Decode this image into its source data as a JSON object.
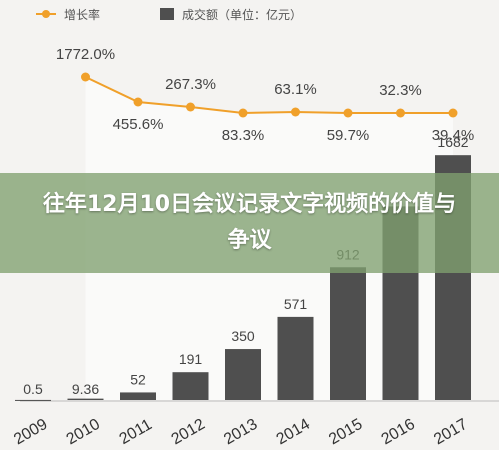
{
  "legend": {
    "growth_label": "增长率",
    "volume_label": "成交额（单位：亿元）"
  },
  "banner": {
    "title": "往年12月10日会议记录文字视频的价值与争议"
  },
  "colors": {
    "bar": "#4f4f4f",
    "line": "#f0a02a",
    "banner": "#80a070",
    "background": "#f4f3f1"
  },
  "chart_data": {
    "type": "bar",
    "title": "",
    "categories": [
      "2009",
      "2010",
      "2011",
      "2012",
      "2013",
      "2014",
      "2015",
      "2016",
      "2017"
    ],
    "series": [
      {
        "name": "成交额（单位：亿元）",
        "type": "bar",
        "values": [
          0.5,
          9.36,
          52,
          191,
          350,
          571,
          912,
          null,
          1682
        ],
        "labels": [
          "0.5",
          "9.36",
          "52",
          "191",
          "350",
          "571",
          "912",
          "",
          "1682"
        ]
      },
      {
        "name": "增长率",
        "type": "line",
        "values": [
          null,
          1772.0,
          455.6,
          267.3,
          83.3,
          63.1,
          59.7,
          32.3,
          39.4
        ],
        "labels": [
          "",
          "1772.0%",
          "455.6%",
          "267.3%",
          "83.3%",
          "63.1%",
          "59.7%",
          "32.3%",
          "39.4%"
        ]
      }
    ],
    "legend_position": "top-left",
    "grid": false
  }
}
